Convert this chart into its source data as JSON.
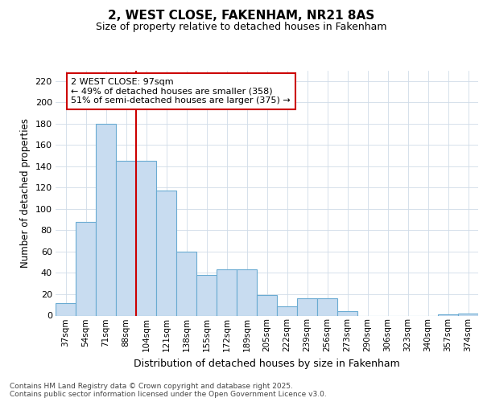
{
  "title_line1": "2, WEST CLOSE, FAKENHAM, NR21 8AS",
  "title_line2": "Size of property relative to detached houses in Fakenham",
  "xlabel": "Distribution of detached houses by size in Fakenham",
  "ylabel": "Number of detached properties",
  "categories": [
    "37sqm",
    "54sqm",
    "71sqm",
    "88sqm",
    "104sqm",
    "121sqm",
    "138sqm",
    "155sqm",
    "172sqm",
    "189sqm",
    "205sqm",
    "222sqm",
    "239sqm",
    "256sqm",
    "273sqm",
    "290sqm",
    "306sqm",
    "323sqm",
    "340sqm",
    "357sqm",
    "374sqm"
  ],
  "bar_values": [
    12,
    88,
    180,
    145,
    145,
    117,
    60,
    38,
    43,
    43,
    19,
    9,
    16,
    16,
    4,
    0,
    0,
    0,
    0,
    1,
    2
  ],
  "bar_color": "#c8dcf0",
  "bar_edge_color": "#6aabd2",
  "grid_color": "#d0dce8",
  "vline_color": "#cc0000",
  "vline_pos": 3.5,
  "annotation_text": "2 WEST CLOSE: 97sqm\n← 49% of detached houses are smaller (358)\n51% of semi-detached houses are larger (375) →",
  "ylim": [
    0,
    230
  ],
  "yticks": [
    0,
    20,
    40,
    60,
    80,
    100,
    120,
    140,
    160,
    180,
    200,
    220
  ],
  "background_color": "#ffffff",
  "footnote_line1": "Contains HM Land Registry data © Crown copyright and database right 2025.",
  "footnote_line2": "Contains public sector information licensed under the Open Government Licence v3.0."
}
